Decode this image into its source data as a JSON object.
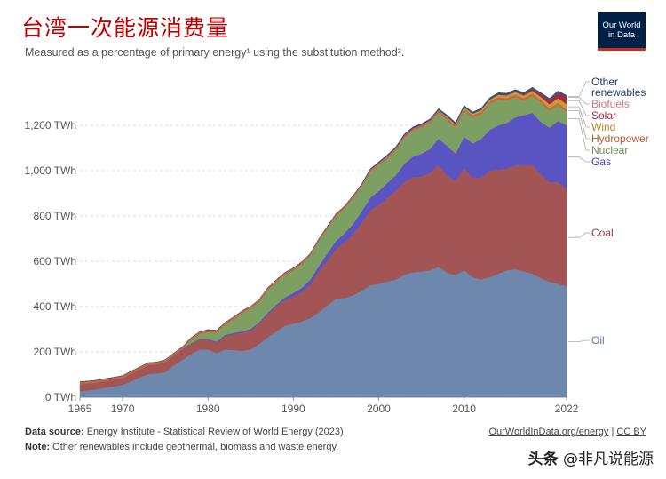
{
  "title": "台湾一次能源消费量",
  "subtitle": "Measured as a percentage of primary energy¹ using the substitution method².",
  "logo": {
    "line1": "Our World",
    "line2": "in Data"
  },
  "footer": {
    "source_label": "Data source:",
    "source_text": "Energy Institute - Statistical Review of World Energy (2023)",
    "note_label": "Note:",
    "note_text": "Other renewables include geothermal, biomass and waste energy.",
    "link": "OurWorldInData.org/energy",
    "sep": " | ",
    "license": "CC BY"
  },
  "watermark": {
    "head": "头条",
    "text": "@非凡说能源"
  },
  "chart_data": {
    "type": "area",
    "stacked": true,
    "ylabel_unit": "TWh",
    "ylim": [
      0,
      1400
    ],
    "y_ticks": [
      0,
      200,
      400,
      600,
      800,
      1000,
      1200
    ],
    "y_tick_labels": [
      "0 TWh",
      "200 TWh",
      "400 TWh",
      "600 TWh",
      "800 TWh",
      "1,000 TWh",
      "1,200 TWh"
    ],
    "xlim": [
      1965,
      2022
    ],
    "x_ticks": [
      1965,
      1970,
      1980,
      1990,
      2000,
      2010,
      2022
    ],
    "x_tick_labels": [
      "1965",
      "1970",
      "1980",
      "1990",
      "2000",
      "2010",
      "2022"
    ],
    "grid": true,
    "x": [
      1965,
      1966,
      1967,
      1968,
      1969,
      1970,
      1971,
      1972,
      1973,
      1974,
      1975,
      1976,
      1977,
      1978,
      1979,
      1980,
      1981,
      1982,
      1983,
      1984,
      1985,
      1986,
      1987,
      1988,
      1989,
      1990,
      1991,
      1992,
      1993,
      1994,
      1995,
      1996,
      1997,
      1998,
      1999,
      2000,
      2001,
      2002,
      2003,
      2004,
      2005,
      2006,
      2007,
      2008,
      2009,
      2010,
      2011,
      2012,
      2013,
      2014,
      2015,
      2016,
      2017,
      2018,
      2019,
      2020,
      2021,
      2022
    ],
    "series": [
      {
        "name": "Oil",
        "color": "#6d87ad",
        "values": [
          28,
          31,
          35,
          42,
          48,
          55,
          70,
          88,
          102,
          105,
          110,
          140,
          165,
          190,
          210,
          210,
          195,
          210,
          208,
          205,
          210,
          235,
          265,
          290,
          315,
          325,
          335,
          350,
          375,
          405,
          435,
          438,
          450,
          470,
          495,
          500,
          510,
          520,
          540,
          552,
          555,
          560,
          575,
          550,
          540,
          560,
          530,
          520,
          530,
          545,
          560,
          565,
          555,
          545,
          525,
          510,
          500,
          490
        ]
      },
      {
        "name": "Coal",
        "color": "#a35555",
        "values": [
          30,
          30,
          30,
          30,
          30,
          30,
          35,
          35,
          40,
          40,
          45,
          45,
          45,
          45,
          45,
          45,
          45,
          60,
          70,
          80,
          85,
          90,
          100,
          110,
          115,
          120,
          130,
          150,
          180,
          200,
          220,
          245,
          270,
          300,
          330,
          350,
          370,
          390,
          410,
          420,
          420,
          430,
          450,
          430,
          415,
          450,
          440,
          450,
          470,
          460,
          450,
          460,
          470,
          480,
          460,
          440,
          450,
          430
        ]
      },
      {
        "name": "Gas",
        "color": "#5a53c2",
        "values": [
          0,
          0,
          0,
          0,
          0,
          0,
          0,
          0,
          0,
          0,
          0,
          0,
          2,
          2,
          3,
          3,
          5,
          5,
          6,
          6,
          6,
          6,
          8,
          8,
          10,
          15,
          18,
          20,
          25,
          30,
          35,
          40,
          45,
          50,
          55,
          60,
          65,
          70,
          80,
          90,
          100,
          105,
          115,
          130,
          120,
          140,
          150,
          170,
          180,
          195,
          200,
          210,
          220,
          230,
          230,
          240,
          270,
          280
        ]
      },
      {
        "name": "Nuclear",
        "color": "#7d9f64",
        "values": [
          0,
          0,
          0,
          0,
          0,
          0,
          0,
          0,
          0,
          0,
          0,
          0,
          0,
          15,
          20,
          30,
          40,
          45,
          60,
          80,
          90,
          90,
          100,
          100,
          100,
          100,
          105,
          105,
          110,
          110,
          110,
          110,
          115,
          110,
          115,
          115,
          110,
          110,
          115,
          115,
          115,
          115,
          115,
          115,
          115,
          115,
          115,
          110,
          115,
          115,
          100,
          90,
          65,
          75,
          85,
          75,
          70,
          60
        ]
      },
      {
        "name": "Hydropower",
        "color": "#c9663f",
        "values": [
          10,
          10,
          10,
          10,
          10,
          10,
          10,
          10,
          10,
          10,
          10,
          10,
          10,
          10,
          10,
          10,
          10,
          10,
          10,
          10,
          10,
          10,
          10,
          10,
          10,
          10,
          10,
          10,
          10,
          10,
          10,
          10,
          10,
          10,
          10,
          10,
          10,
          10,
          10,
          10,
          10,
          10,
          10,
          10,
          10,
          10,
          10,
          10,
          10,
          10,
          10,
          10,
          10,
          10,
          10,
          10,
          10,
          10
        ]
      },
      {
        "name": "Wind",
        "color": "#c69d34",
        "values": [
          0,
          0,
          0,
          0,
          0,
          0,
          0,
          0,
          0,
          0,
          0,
          0,
          0,
          0,
          0,
          0,
          0,
          0,
          0,
          0,
          0,
          0,
          0,
          0,
          0,
          0,
          0,
          0,
          0,
          0,
          0,
          0,
          0,
          0,
          0,
          0,
          0,
          0,
          0,
          0,
          1,
          2,
          3,
          4,
          5,
          6,
          7,
          8,
          9,
          10,
          12,
          12,
          12,
          13,
          15,
          18,
          20,
          24
        ]
      },
      {
        "name": "Solar",
        "color": "#a8263e",
        "values": [
          0,
          0,
          0,
          0,
          0,
          0,
          0,
          0,
          0,
          0,
          0,
          0,
          0,
          0,
          0,
          0,
          0,
          0,
          0,
          0,
          0,
          0,
          0,
          0,
          0,
          0,
          0,
          0,
          0,
          0,
          0,
          0,
          0,
          0,
          0,
          0,
          0,
          0,
          0,
          0,
          0,
          0,
          0,
          0,
          0,
          0,
          0,
          1,
          1,
          2,
          3,
          4,
          6,
          8,
          12,
          18,
          24,
          30
        ]
      },
      {
        "name": "Biofuels",
        "color": "#d5747f",
        "values": [
          0,
          0,
          0,
          0,
          0,
          0,
          0,
          0,
          0,
          0,
          0,
          0,
          0,
          0,
          0,
          0,
          0,
          0,
          0,
          0,
          0,
          0,
          0,
          0,
          0,
          0,
          0,
          0,
          0,
          0,
          0,
          0,
          0,
          0,
          0,
          0,
          0,
          0,
          0,
          0,
          0,
          0,
          0,
          0,
          0,
          0,
          0,
          0,
          0,
          0,
          0,
          0,
          0,
          0,
          0,
          0,
          0,
          0
        ]
      },
      {
        "name": "Other renewables",
        "color": "#33507a",
        "values": [
          0,
          0,
          0,
          0,
          0,
          0,
          0,
          0,
          0,
          0,
          0,
          0,
          0,
          0,
          0,
          0,
          0,
          0,
          0,
          0,
          0,
          0,
          0,
          0,
          0,
          0,
          0,
          0,
          0,
          0,
          0,
          0,
          0,
          2,
          3,
          4,
          5,
          5,
          6,
          6,
          6,
          6,
          6,
          7,
          7,
          7,
          7,
          7,
          7,
          7,
          7,
          7,
          7,
          7,
          7,
          8,
          8,
          8
        ]
      }
    ],
    "legend": [
      {
        "label": "Other\nrenewables",
        "series": "Other renewables",
        "color": "#1d3d63"
      },
      {
        "label": "Biofuels",
        "series": "Biofuels",
        "color": "#d5747f"
      },
      {
        "label": "Solar",
        "series": "Solar",
        "color": "#a8263e"
      },
      {
        "label": "Wind",
        "series": "Wind",
        "color": "#b78a1f"
      },
      {
        "label": "Hydropower",
        "series": "Hydropower",
        "color": "#b85a2c"
      },
      {
        "label": "Nuclear",
        "series": "Nuclear",
        "color": "#6b8f52"
      },
      {
        "label": "Gas",
        "series": "Gas",
        "color": "#4a43b0"
      },
      {
        "label": "Coal",
        "series": "Coal",
        "color": "#8f3f3f"
      },
      {
        "label": "Oil",
        "series": "Oil",
        "color": "#5d77a0"
      }
    ]
  }
}
